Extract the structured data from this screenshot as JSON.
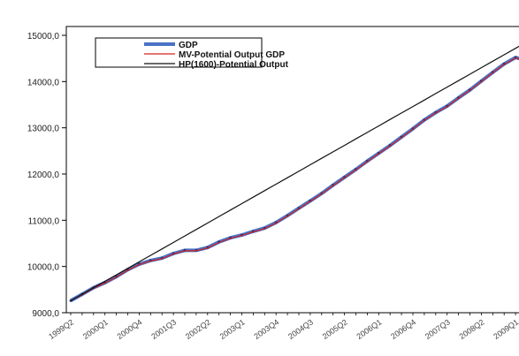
{
  "chart_data": {
    "type": "line",
    "title": "",
    "xlabel": "",
    "ylabel": "",
    "ylim": [
      9000,
      15000
    ],
    "yticks": [
      "9000,0",
      "10000,0",
      "11000,0",
      "12000,0",
      "13000,0",
      "14000,0",
      "15000,0"
    ],
    "ytick_values": [
      9000,
      10000,
      11000,
      12000,
      13000,
      14000,
      15000
    ],
    "xticks": [
      "1999Q2",
      "2000Q1",
      "2000Q4",
      "2001Q3",
      "2002Q2",
      "2003Q1",
      "2003Q4",
      "2004Q3",
      "2005Q2",
      "2006Q1",
      "2006Q4",
      "2007Q3",
      "2008Q2",
      "2009Q1"
    ],
    "xtick_index": [
      0,
      3,
      6,
      9,
      12,
      15,
      18,
      21,
      24,
      27,
      30,
      33,
      36,
      39
    ],
    "categories": [
      "1999Q2",
      "1999Q3",
      "1999Q4",
      "2000Q1",
      "2000Q2",
      "2000Q3",
      "2000Q4",
      "2001Q1",
      "2001Q2",
      "2001Q3",
      "2001Q4",
      "2002Q1",
      "2002Q2",
      "2002Q3",
      "2002Q4",
      "2003Q1",
      "2003Q2",
      "2003Q3",
      "2003Q4",
      "2004Q1",
      "2004Q2",
      "2004Q3",
      "2004Q4",
      "2005Q1",
      "2005Q2",
      "2005Q3",
      "2005Q4",
      "2006Q1",
      "2006Q2",
      "2006Q3",
      "2006Q4",
      "2007Q1",
      "2007Q2",
      "2007Q3",
      "2007Q4",
      "2008Q1",
      "2008Q2",
      "2008Q3",
      "2008Q4",
      "2009Q1",
      "2009Q2"
    ],
    "grid": false,
    "legend_position": "top-left",
    "series": [
      {
        "name": "GDP",
        "color": "#4a72c4",
        "marker": true,
        "values": [
          9260,
          9400,
          9540,
          9650,
          9780,
          9930,
          10050,
          10130,
          10180,
          10280,
          10350,
          10350,
          10410,
          10530,
          10620,
          10680,
          10760,
          10830,
          10950,
          11100,
          11260,
          11420,
          11580,
          11760,
          11930,
          12100,
          12280,
          12450,
          12620,
          12800,
          12980,
          13170,
          13330,
          13470,
          13650,
          13820,
          14010,
          14200,
          14380,
          14520,
          14450
        ]
      },
      {
        "name": "MV-Potential Output GDP",
        "color": "#d22020",
        "marker": false,
        "values": [
          9260,
          9390,
          9530,
          9640,
          9770,
          9920,
          10040,
          10120,
          10170,
          10270,
          10340,
          10340,
          10400,
          10520,
          10610,
          10670,
          10750,
          10820,
          10940,
          11090,
          11250,
          11410,
          11570,
          11750,
          11920,
          12090,
          12270,
          12440,
          12610,
          12790,
          12970,
          13160,
          13320,
          13460,
          13640,
          13810,
          14000,
          14190,
          14370,
          14510,
          14440
        ]
      },
      {
        "name": "HP(1600)-Potential Output",
        "color": "#111111",
        "marker": false,
        "values": [
          9260,
          9400,
          9540,
          9680,
          9820,
          9960,
          10100,
          10240,
          10380,
          10520,
          10660,
          10800,
          10940,
          11080,
          11220,
          11360,
          11500,
          11640,
          11780,
          11920,
          12060,
          12200,
          12340,
          12480,
          12620,
          12760,
          12900,
          13040,
          13180,
          13320,
          13460,
          13600,
          13740,
          13880,
          14020,
          14160,
          14300,
          14440,
          14580,
          14720,
          14860
        ]
      }
    ]
  }
}
